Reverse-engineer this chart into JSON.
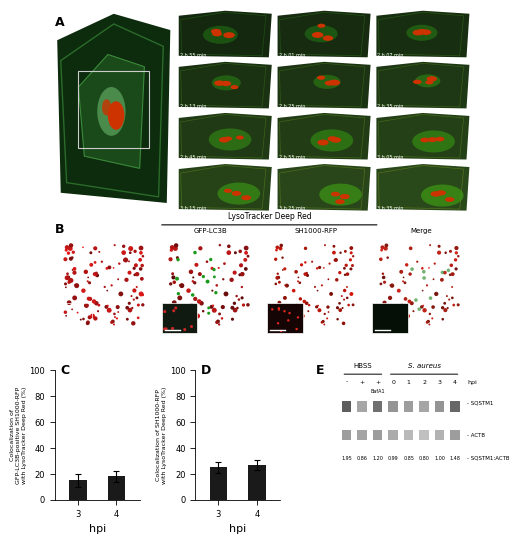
{
  "panel_A_label": "A",
  "panel_B_label": "B",
  "panel_C_label": "C",
  "panel_D_label": "D",
  "panel_E_label": "E",
  "panel_C": {
    "categories": [
      "3",
      "4"
    ],
    "values": [
      15,
      18
    ],
    "errors": [
      5,
      4
    ],
    "ylabel": "Colocalization of\nGFP-LC3B-positive SH1000-RFP\nwith LysoTracker Deep Red (%)",
    "xlabel": "hpi",
    "ylim": [
      0,
      100
    ],
    "yticks": [
      0,
      20,
      40,
      60,
      80,
      100
    ],
    "bar_color": "#1a1a1a",
    "bar_width": 0.45
  },
  "panel_D": {
    "categories": [
      "3",
      "4"
    ],
    "values": [
      25,
      27
    ],
    "errors": [
      4,
      4
    ],
    "ylabel": "Colocalization of SH1000-RFP\nwith LysoTracker Deep Red (%)",
    "xlabel": "hpi",
    "ylim": [
      0,
      100
    ],
    "yticks": [
      0,
      20,
      40,
      60,
      80,
      100
    ],
    "bar_color": "#1a1a1a",
    "bar_width": 0.45
  },
  "panel_E": {
    "hbss_labels": [
      "-",
      "+",
      "+"
    ],
    "baf_label": "BafA1",
    "saur_labels": [
      "0",
      "1",
      "2",
      "3",
      "4"
    ],
    "hpi_label": "hpi",
    "sqstm1_label": "SQSTM1",
    "actb_label": "ACTB",
    "ratio_label": "SQSTM1:ACTB",
    "ratio_values": [
      "1.95",
      "0.86",
      "1.20",
      "0.99",
      "0.85",
      "0.80",
      "1.00",
      "1.48"
    ],
    "hbss_header": "HBSS",
    "saur_header": "S. aureus"
  },
  "microscopy_A_times": [
    "2 h 55 min",
    "2 h 01 min",
    "2 h 07 min",
    "2 h 13 min",
    "2 h 25 min",
    "2 h 35 min",
    "2 h 45 min",
    "2 h 55 min",
    "3 h 05 min",
    "3 h 15 min",
    "3 h 25 min",
    "3 h 35 min"
  ],
  "lysotracker_label": "LysoTracker Deep Red",
  "gfp_label": "GFP-LC3B",
  "sh1000_label": "SH1000-RFP",
  "merge_label": "Merge",
  "bg_color": "#ffffff",
  "dark_bg": "#111111",
  "scalebar_color": "#ffffff",
  "label_fontsize": 8,
  "tick_fontsize": 6,
  "panel_label_fontsize": 9
}
